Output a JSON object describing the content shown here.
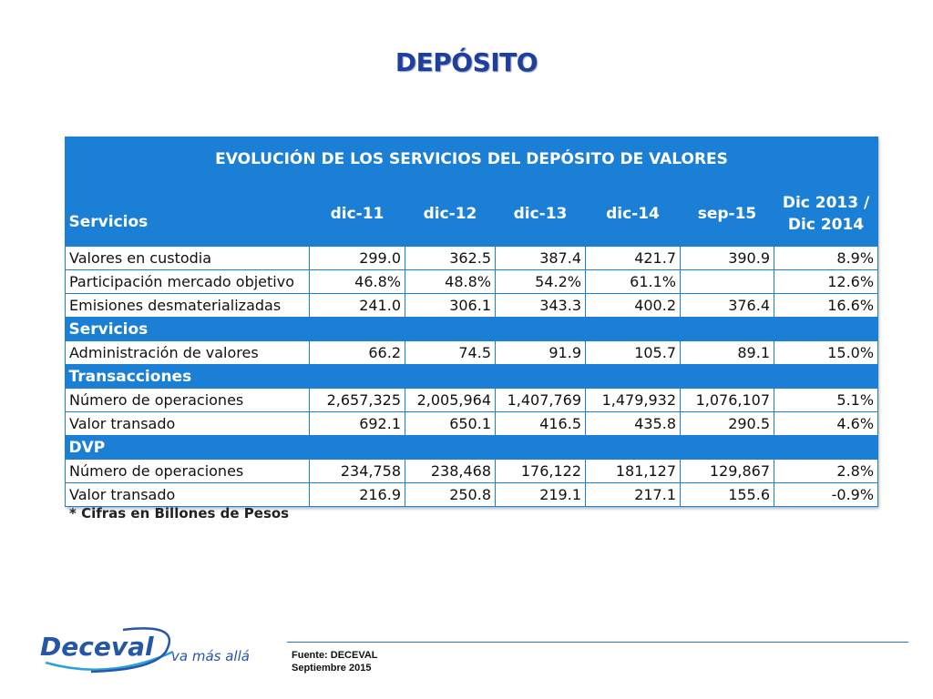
{
  "page": {
    "title": "DEPÓSITO",
    "footnote": "* Cifras en Billones de Pesos",
    "source_line1": "Fuente: DECEVAL",
    "source_line2": "Septiembre 2015",
    "logo_text": "Deceval",
    "logo_tagline": "va más allá"
  },
  "colors": {
    "title": "#1f3f9e",
    "table_header": "#1c7fd6",
    "logo_blue": "#2556a8"
  },
  "table": {
    "caption": "EVOLUCIÓN DE LOS SERVICIOS DEL DEPÓSITO DE VALORES",
    "headers": [
      "Servicios",
      "dic-11",
      "dic-12",
      "dic-13",
      "dic-14",
      "sep-15",
      "Dic 2013 /",
      "Dic 2014"
    ],
    "rows": [
      {
        "label": "Valores en custodia",
        "values": [
          "299.0",
          "362.5",
          "387.4",
          "421.7",
          "390.9",
          "8.9%"
        ]
      },
      {
        "label": "Participación mercado objetivo",
        "values": [
          "46.8%",
          "48.8%",
          "54.2%",
          "61.1%",
          "",
          "12.6%"
        ]
      },
      {
        "label": "Emisiones desmaterializadas",
        "values": [
          "241.0",
          "306.1",
          "343.3",
          "400.2",
          "376.4",
          "16.6%"
        ]
      },
      {
        "section": "Servicios"
      },
      {
        "label": "Administración de valores",
        "values": [
          "66.2",
          "74.5",
          "91.9",
          "105.7",
          "89.1",
          "15.0%"
        ]
      },
      {
        "section": "Transacciones"
      },
      {
        "label": "Número de operaciones",
        "values": [
          "2,657,325",
          "2,005,964",
          "1,407,769",
          "1,479,932",
          "1,076,107",
          "5.1%"
        ]
      },
      {
        "label": "Valor transado",
        "values": [
          "692.1",
          "650.1",
          "416.5",
          "435.8",
          "290.5",
          "4.6%"
        ]
      },
      {
        "section": "DVP"
      },
      {
        "label": "Número de operaciones",
        "values": [
          "234,758",
          "238,468",
          "176,122",
          "181,127",
          "129,867",
          "2.8%"
        ]
      },
      {
        "label": "Valor transado",
        "values": [
          "216.9",
          "250.8",
          "219.1",
          "217.1",
          "155.6",
          "-0.9%"
        ]
      }
    ]
  }
}
